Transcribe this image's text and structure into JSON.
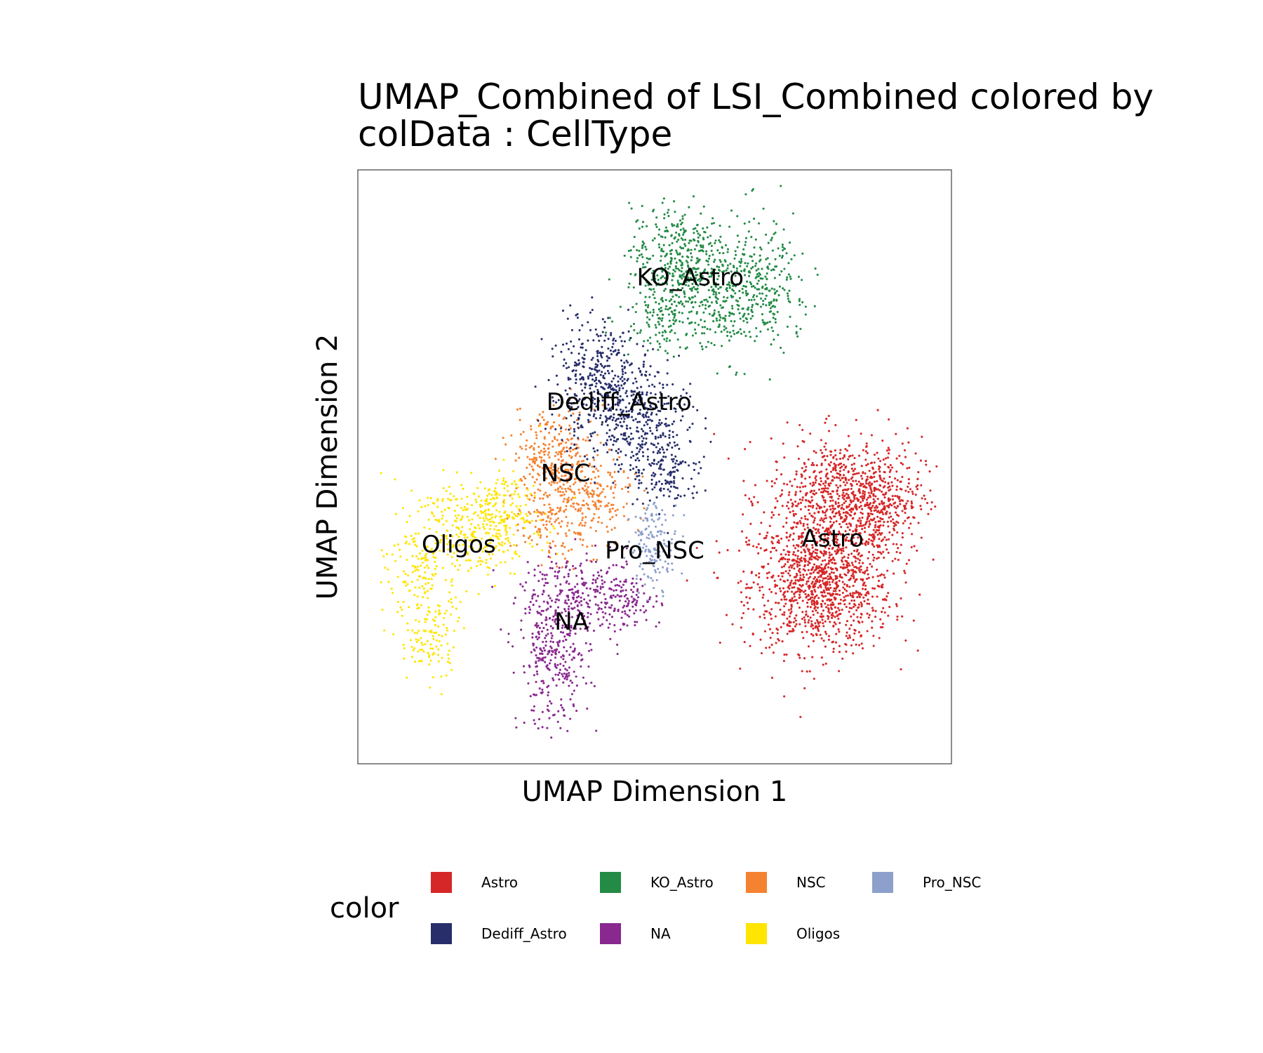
{
  "chart_data": {
    "type": "scatter",
    "title": [
      "UMAP_Combined of LSI_Combined  colored by",
      "colData :  CellType"
    ],
    "xlabel": "UMAP Dimension 1",
    "ylabel": "UMAP Dimension 2",
    "xlim": [
      0,
      100
    ],
    "ylim": [
      0,
      100
    ],
    "grid": false,
    "legend_position": "bottom",
    "legend": {
      "title": "color",
      "entries": [
        "Astro",
        "KO_Astro",
        "NSC",
        "Pro_NSC",
        "Dediff_Astro",
        "NA",
        "Oligos"
      ]
    },
    "categories": [
      {
        "name": "Astro",
        "color": "#D62728",
        "label_at": [
          80,
          38
        ]
      },
      {
        "name": "KO_Astro",
        "color": "#238B45",
        "label_at": [
          56,
          82
        ]
      },
      {
        "name": "NSC",
        "color": "#F58231",
        "label_at": [
          35,
          49
        ]
      },
      {
        "name": "Pro_NSC",
        "color": "#8DA0CB",
        "label_at": [
          50,
          36
        ]
      },
      {
        "name": "Dediff_Astro",
        "color": "#272E6A",
        "label_at": [
          44,
          61
        ]
      },
      {
        "name": "NA",
        "color": "#89288F",
        "label_at": [
          36,
          24
        ]
      },
      {
        "name": "Oligos",
        "color": "#FFE500",
        "label_at": [
          17,
          37
        ]
      }
    ]
  }
}
